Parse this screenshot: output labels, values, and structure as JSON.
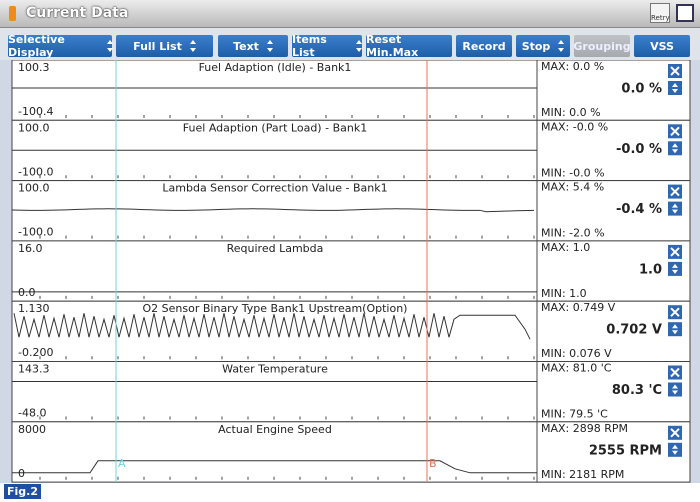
{
  "window": {
    "title": "Current Data",
    "retry": "Retry"
  },
  "toolbar": {
    "buttons": [
      {
        "label": "Selective Display",
        "dropdown": true
      },
      {
        "label": "Full List",
        "dropdown": true
      },
      {
        "label": "Text",
        "dropdown": true
      },
      {
        "label": "Items List",
        "dropdown": true
      },
      {
        "label": "Reset Min.Max",
        "dropdown": false
      },
      {
        "label": "Record",
        "dropdown": false
      },
      {
        "label": "Stop",
        "dropdown": true
      },
      {
        "label": "Grouping",
        "dropdown": false,
        "disabled": true
      },
      {
        "label": "VSS",
        "dropdown": false
      }
    ]
  },
  "panels": [
    {
      "top": "100.3",
      "title": "Fuel Adaption (Idle) - Bank1",
      "bottom": "-100.4",
      "max": "MAX:   0.0 %",
      "value": "0.0 %",
      "min": "MIN:  0.0 %"
    },
    {
      "top": "100.0",
      "title": "Fuel Adaption (Part Load) - Bank1",
      "bottom": "-100.0",
      "max": "MAX: -0.0 %",
      "value": "-0.0 %",
      "min": "MIN: -0.0 %"
    },
    {
      "top": "100.0",
      "title": "Lambda Sensor Correction Value - Bank1",
      "bottom": "-100.0",
      "max": "MAX:  5.4 %",
      "value": "-0.4 %",
      "min": "MIN: -2.0 %"
    },
    {
      "top": "16.0",
      "title": "Required Lambda",
      "bottom": "0.0",
      "max": "MAX:  1.0",
      "value": "1.0",
      "min": "MIN:  1.0"
    },
    {
      "top": "1.130",
      "title": "O2 Sensor Binary Type Bank1 Upstream(Option)",
      "bottom": "-0.200",
      "max": "MAX: 0.749 V",
      "value": "0.702 V",
      "min": "MIN: 0.076 V"
    },
    {
      "top": "143.3",
      "title": "Water Temperature",
      "bottom": "-48.0",
      "max": "MAX: 81.0 'C",
      "value": "80.3 'C",
      "min": "MIN: 79.5 'C"
    },
    {
      "top": "8000",
      "title": "Actual Engine Speed",
      "bottom": "0",
      "max": "MAX:  2898 RPM",
      "value": "2555 RPM",
      "min": "MIN:  2181 RPM"
    }
  ],
  "cursors": [
    "A",
    "B"
  ],
  "figure": "Fig.2"
}
